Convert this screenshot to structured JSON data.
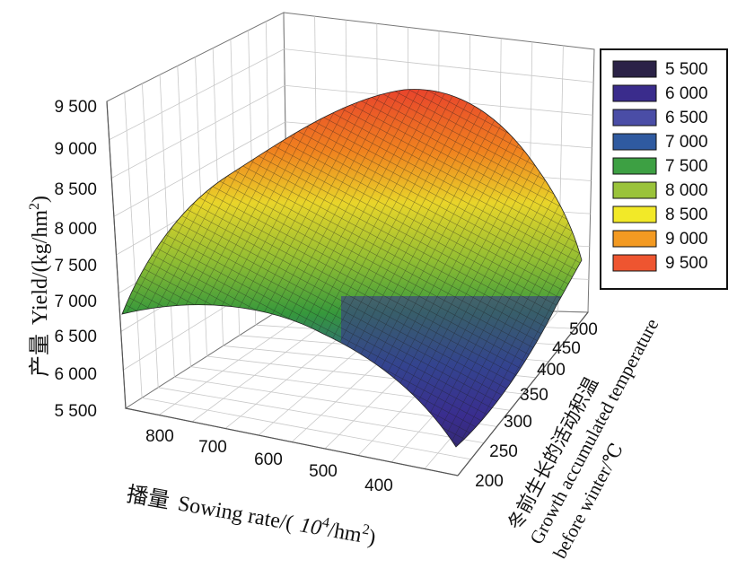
{
  "chart_data": {
    "type": "surface",
    "z_label_cn": "产量",
    "z_label_en": "Yield/(kg/hm",
    "z_label_sup": "2",
    "z_label_close": ")",
    "x_label_cn": "播量",
    "x_label_en": "Sowing rate/(",
    "x_label_unit": "10",
    "x_label_sup1": "4",
    "x_label_mid": "/hm",
    "x_label_sup2": "2",
    "x_label_close": ")",
    "y_label_cn": "冬前生长的活动积温",
    "y_label_en1": "Growth accumulated temperature",
    "y_label_en2": "before winter/℃",
    "z_ticks": [
      "5 500",
      "6 000",
      "6 500",
      "7 000",
      "7 500",
      "8 000",
      "8 500",
      "9 000",
      "9 500"
    ],
    "x_ticks": [
      "800",
      "700",
      "600",
      "500",
      "400"
    ],
    "y_ticks": [
      "200",
      "250",
      "300",
      "350",
      "400",
      "450",
      "500"
    ],
    "legend": {
      "position": "right",
      "items": [
        {
          "label": "5 500",
          "color": "#2b2247"
        },
        {
          "label": "6 000",
          "color": "#3a2c8c"
        },
        {
          "label": "6 500",
          "color": "#4a4da6"
        },
        {
          "label": "7 000",
          "color": "#2f5aa0"
        },
        {
          "label": "7 500",
          "color": "#3da043"
        },
        {
          "label": "8 000",
          "color": "#9ac33a"
        },
        {
          "label": "8 500",
          "color": "#f2e928"
        },
        {
          "label": "9 000",
          "color": "#f39a22"
        },
        {
          "label": "9 500",
          "color": "#ee5530"
        }
      ]
    },
    "zlim": [
      5500,
      9500
    ],
    "xlim": [
      350,
      850
    ],
    "ylim": [
      200,
      500
    ],
    "grid": true
  }
}
